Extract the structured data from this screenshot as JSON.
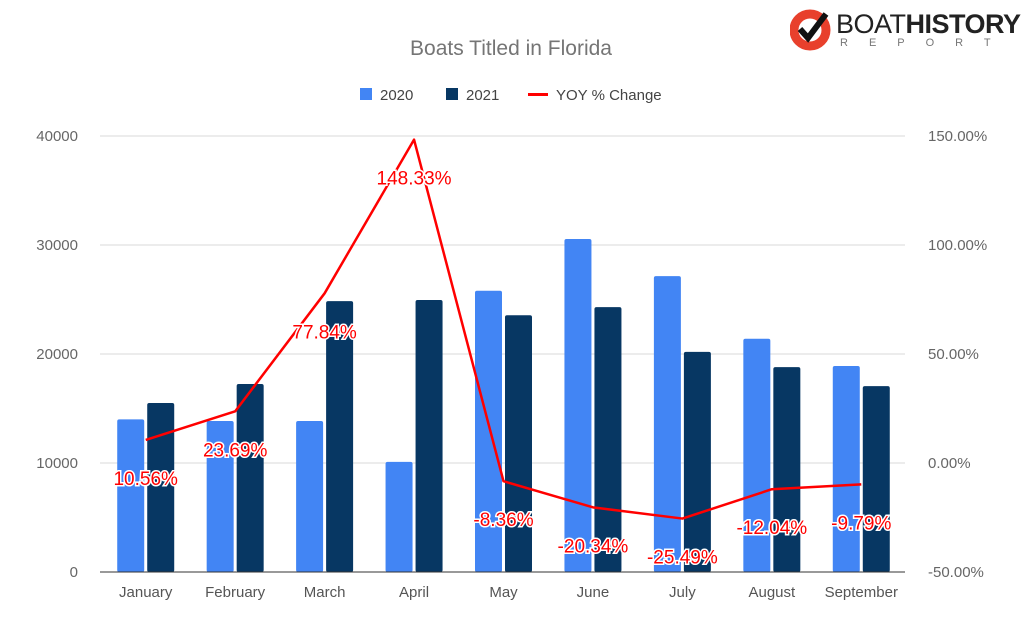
{
  "logo": {
    "text_main": "BOAT",
    "text_bold": "HISTORY",
    "text_sub": "REPORT",
    "colors": {
      "ring": "#e8402c",
      "check": "#111111"
    }
  },
  "chart_data": {
    "type": "bar",
    "title": "Boats Titled in Florida",
    "categories": [
      "January",
      "February",
      "March",
      "April",
      "May",
      "June",
      "July",
      "August",
      "September"
    ],
    "series": [
      {
        "name": "2020",
        "type": "bar",
        "axis": "left",
        "color": "#4285f4",
        "values": [
          14000,
          13850,
          13850,
          10100,
          25800,
          30550,
          27150,
          21400,
          18900
        ]
      },
      {
        "name": "2021",
        "type": "bar",
        "axis": "left",
        "color": "#073763",
        "values": [
          15500,
          17250,
          24850,
          24950,
          23550,
          24300,
          20200,
          18800,
          17050
        ]
      },
      {
        "name": "YOY % Change",
        "type": "line",
        "axis": "right",
        "color": "#ff0000",
        "values": [
          10.56,
          23.69,
          77.84,
          148.33,
          -8.36,
          -20.34,
          -25.49,
          -12.04,
          -9.79
        ],
        "labels": [
          "10.56%",
          "23.69%",
          "77.84%",
          "148.33%",
          "-8.36%",
          "-20.34%",
          "-25.49%",
          "-12.04%",
          "-9.79%"
        ]
      }
    ],
    "left_axis": {
      "ylim": [
        0,
        40000
      ],
      "ticks": [
        "0",
        "10000",
        "20000",
        "30000",
        "40000"
      ]
    },
    "right_axis": {
      "ylim": [
        -50,
        150
      ],
      "ticks": [
        "-50.00%",
        "0.00%",
        "50.00%",
        "100.00%",
        "150.00%"
      ]
    },
    "grid": true,
    "legend_placement": "top"
  }
}
